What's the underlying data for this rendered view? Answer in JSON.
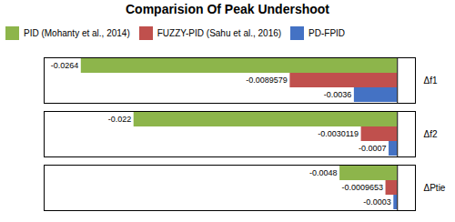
{
  "chart_data": {
    "type": "bar",
    "orientation": "horizontal",
    "title": "Comparision Of Peak Undershoot",
    "categories": [
      "Δf1",
      "Δf2",
      "ΔPtie"
    ],
    "series": [
      {
        "name": "PID (Mohanty et al., 2014)",
        "color": "#8DB54B",
        "values": [
          -0.0264,
          -0.022,
          -0.0048
        ]
      },
      {
        "name": "FUZZY-PID (Sahu et al., 2016)",
        "color": "#C0504D",
        "values": [
          -0.0089579,
          -0.0030119,
          -0.0009653
        ]
      },
      {
        "name": "PD-FPID",
        "color": "#4472C4",
        "values": [
          -0.0036,
          -0.0007,
          -0.0003
        ]
      }
    ],
    "xlim": [
      -0.0295,
      0.0015
    ],
    "data_labels": true,
    "tick_labels": "y",
    "legend": "upper left",
    "grid": false
  }
}
